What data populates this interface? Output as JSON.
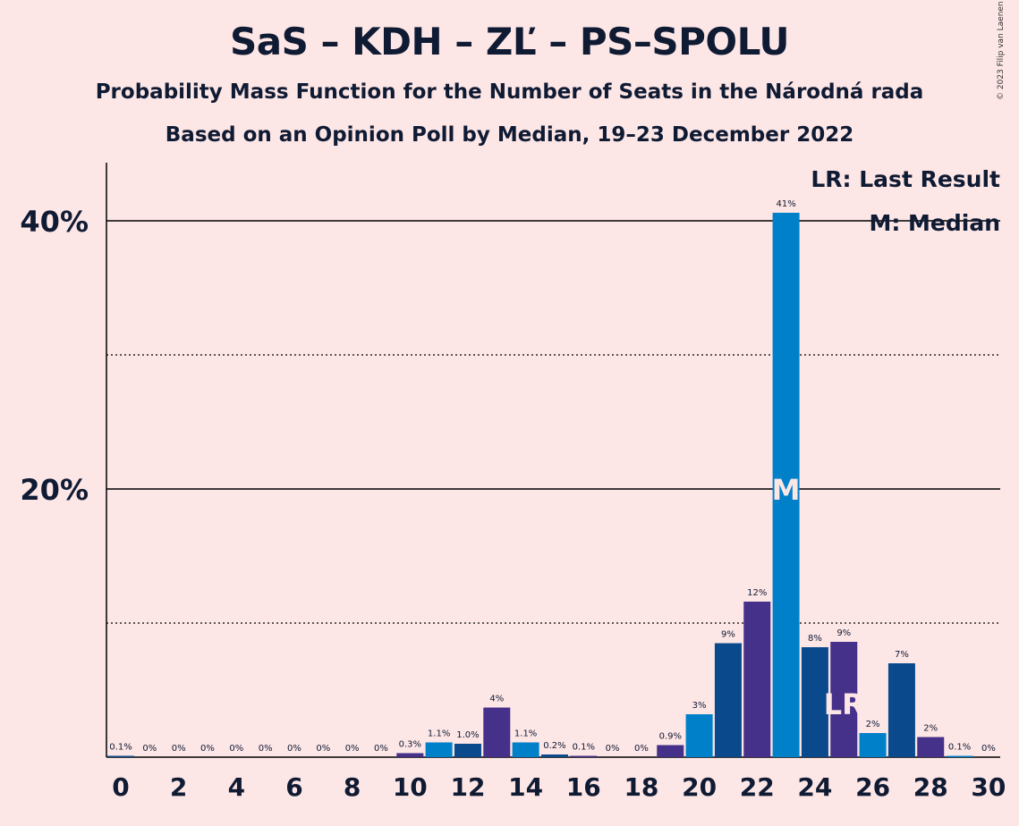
{
  "header": {
    "title": "SaS – KDH – ZĽ – PS–SPOLU",
    "subtitle": "Probability Mass Function for the Number of Seats in the Národná rada",
    "subtitle2": "Based on an Opinion Poll by Median, 19–23 December 2022",
    "copyright": "© 2023 Filip van Laenen"
  },
  "colors": {
    "background": "#fde6e6",
    "palette": [
      "#0a4a8c",
      "#45308a",
      "#0080c8"
    ]
  },
  "chart_data": {
    "type": "bar",
    "x": [
      0,
      1,
      2,
      3,
      4,
      5,
      6,
      7,
      8,
      9,
      10,
      11,
      12,
      13,
      14,
      15,
      16,
      17,
      18,
      19,
      20,
      21,
      22,
      23,
      24,
      25,
      26,
      27,
      28,
      29,
      30
    ],
    "values": [
      0.1,
      0,
      0,
      0,
      0,
      0,
      0,
      0,
      0,
      0,
      0.3,
      1.1,
      1.0,
      3.7,
      1.1,
      0.2,
      0.1,
      0,
      0,
      0.9,
      3.2,
      8.5,
      11.6,
      40.6,
      8.2,
      8.6,
      1.8,
      7.0,
      1.5,
      0.1,
      0
    ],
    "data_labels": [
      "0.1%",
      "0%",
      "0%",
      "0%",
      "0%",
      "0%",
      "0%",
      "0%",
      "0%",
      "0%",
      "0.3%",
      "1.1%",
      "1.0%",
      "4%",
      "1.1%",
      "0.2%",
      "0.1%",
      "0%",
      "0%",
      "0.9%",
      "3%",
      "9%",
      "12%",
      "41%",
      "8%",
      "9%",
      "2%",
      "7%",
      "2%",
      "0.1%",
      "0%"
    ],
    "x_ticks": [
      "0",
      "2",
      "4",
      "6",
      "8",
      "10",
      "12",
      "14",
      "16",
      "18",
      "20",
      "22",
      "24",
      "26",
      "28",
      "30"
    ],
    "y_ticks": [
      {
        "value": 20,
        "label": "20%"
      },
      {
        "value": 40,
        "label": "40%"
      }
    ],
    "ylim": [
      0,
      44
    ],
    "gridlines": {
      "solid": [
        20,
        40
      ],
      "dotted": [
        10,
        30
      ]
    },
    "median": {
      "seat": 23,
      "label": "M"
    },
    "last_result": {
      "seat": 25,
      "label": "LR"
    },
    "legend": {
      "placement": "top-right",
      "items": [
        "LR: Last Result",
        "M: Median"
      ]
    }
  }
}
